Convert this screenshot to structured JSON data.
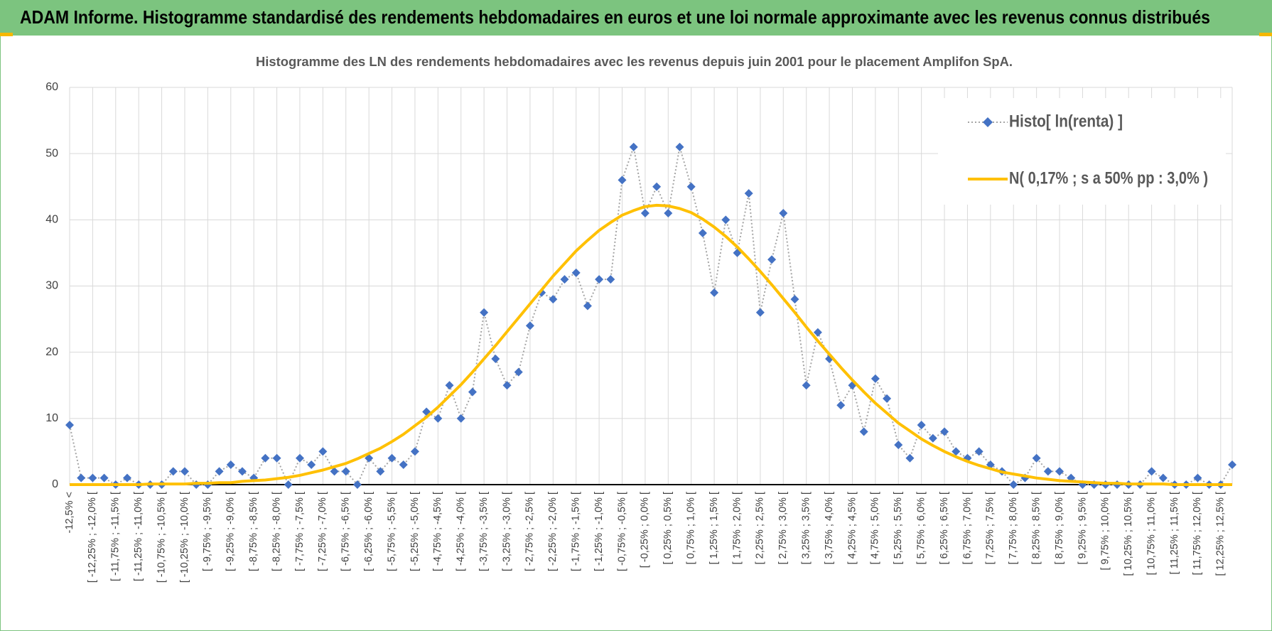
{
  "header": {
    "title": "ADAM Informe. Histogramme standardisé des rendements hebdomadaires en euros et une loi normale approximante avec les revenus connus distribués"
  },
  "chart_data": {
    "type": "line",
    "title": "Histogramme  des LN des rendements hebdomadaires avec les revenus depuis juin 2001  pour le placement Amplifon SpA.",
    "categories": [
      "-12,5% <",
      null,
      "[ -12,25% ; -12,0% [",
      null,
      "[ -11,75% ; -11,5% [",
      null,
      "[ -11,25% ; -11,0% [",
      null,
      "[ -10,75% ; -10,5% [",
      null,
      "[ -10,25% ; -10,0% [",
      null,
      "[ -9,75% ; -9,5% [",
      null,
      "[ -9,25% ; -9,0% [",
      null,
      "[ -8,75% ; -8,5% [",
      null,
      "[ -8,25% ; -8,0% [",
      null,
      "[ -7,75% ; -7,5% [",
      null,
      "[ -7,25% ; -7,0% [",
      null,
      "[ -6,75% ; -6,5% [",
      null,
      "[ -6,25% ; -6,0% [",
      null,
      "[ -5,75% ; -5,5% [",
      null,
      "[ -5,25% ; -5,0% [",
      null,
      "[ -4,75% ; -4,5% [",
      null,
      "[ -4,25% ; -4,0% [",
      null,
      "[ -3,75% ; -3,5% [",
      null,
      "[ -3,25% ; -3,0% [",
      null,
      "[ -2,75% ; -2,5% [",
      null,
      "[ -2,25% ; -2,0% [",
      null,
      "[ -1,75% ; -1,5% [",
      null,
      "[ -1,25% ; -1,0% [",
      null,
      "[ -0,75% ; -0,5% [",
      null,
      "[ -0,25% ; 0,0% [",
      null,
      "[ 0,25% ; 0,5% [",
      null,
      "[ 0,75% ; 1,0% [",
      null,
      "[ 1,25% ; 1,5% [",
      null,
      "[ 1,75% ; 2,0% [",
      null,
      "[ 2,25% ; 2,5% [",
      null,
      "[ 2,75% ; 3,0% [",
      null,
      "[ 3,25% ; 3,5% [",
      null,
      "[ 3,75% ; 4,0% [",
      null,
      "[ 4,25% ; 4,5% [",
      null,
      "[ 4,75% ; 5,0% [",
      null,
      "[ 5,25% ; 5,5% [",
      null,
      "[ 5,75% ; 6,0% [",
      null,
      "[ 6,25% ; 6,5% [",
      null,
      "[ 6,75% ; 7,0% [",
      null,
      "[ 7,25% ; 7,5% [",
      null,
      "[ 7,75% ; 8,0% [",
      null,
      "[ 8,25% ; 8,5% [",
      null,
      "[ 8,75% ; 9,0% [",
      null,
      "[ 9,25% ; 9,5% [",
      null,
      "[ 9,75% ; 10,0% [",
      null,
      "[ 10,25% ; 10,5% [",
      null,
      "[ 10,75% ; 11,0% [",
      null,
      "[ 11,25% ; 11,5% [",
      null,
      "[ 11,75% ; 12,0% [",
      null,
      "[ 12,25% ; 12,5% [",
      null
    ],
    "series": [
      {
        "name": "Histo[ ln(renta) ]",
        "color": "#4472c4",
        "line_color": "#a5a5a5",
        "marker": "diamond",
        "values": [
          9,
          1,
          1,
          1,
          0,
          1,
          0,
          0,
          0,
          2,
          2,
          0,
          0,
          2,
          3,
          2,
          1,
          4,
          4,
          0,
          4,
          3,
          5,
          2,
          2,
          0,
          4,
          2,
          4,
          3,
          5,
          11,
          10,
          15,
          10,
          14,
          26,
          19,
          15,
          17,
          24,
          29,
          28,
          31,
          32,
          27,
          31,
          31,
          46,
          51,
          41,
          45,
          41,
          51,
          45,
          38,
          29,
          40,
          35,
          44,
          26,
          34,
          41,
          28,
          15,
          23,
          19,
          12,
          15,
          8,
          16,
          13,
          6,
          4,
          9,
          7,
          8,
          5,
          4,
          5,
          3,
          2,
          0,
          1,
          4,
          2,
          2,
          1,
          0,
          0,
          0,
          0,
          0,
          0,
          2,
          1,
          0,
          0,
          1,
          0,
          0,
          3
        ]
      },
      {
        "name": "N( 0,17% ; s a 50% pp : 3,0% )",
        "color": "#ffc000",
        "values": [
          0,
          0,
          0,
          0,
          0,
          0,
          0,
          0.1,
          0.1,
          0.1,
          0.1,
          0.2,
          0.2,
          0.3,
          0.3,
          0.5,
          0.6,
          0.7,
          0.9,
          1.1,
          1.4,
          1.8,
          2.2,
          2.7,
          3.2,
          3.9,
          4.7,
          5.5,
          6.5,
          7.6,
          8.9,
          10.2,
          11.7,
          13.4,
          15.1,
          17.0,
          19.0,
          21.0,
          23.1,
          25.2,
          27.3,
          29.4,
          31.5,
          33.4,
          35.3,
          36.9,
          38.4,
          39.6,
          40.7,
          41.4,
          42.0,
          42.2,
          42.1,
          41.7,
          41.1,
          40.1,
          38.9,
          37.5,
          35.9,
          34.1,
          32.2,
          30.2,
          28.1,
          26.0,
          23.8,
          21.7,
          19.7,
          17.7,
          15.8,
          14.0,
          12.3,
          10.8,
          9.3,
          8.1,
          6.9,
          5.9,
          5.0,
          4.2,
          3.5,
          2.9,
          2.4,
          1.9,
          1.6,
          1.3,
          1.0,
          0.8,
          0.6,
          0.5,
          0.4,
          0.3,
          0.2,
          0.2,
          0.1,
          0.1,
          0.1,
          0.1,
          0,
          0,
          0,
          0,
          0,
          0
        ]
      }
    ],
    "ylim": [
      0,
      60
    ],
    "yticks": [
      0,
      10,
      20,
      30,
      40,
      50,
      60
    ],
    "grid": true,
    "legend": "top-right"
  }
}
